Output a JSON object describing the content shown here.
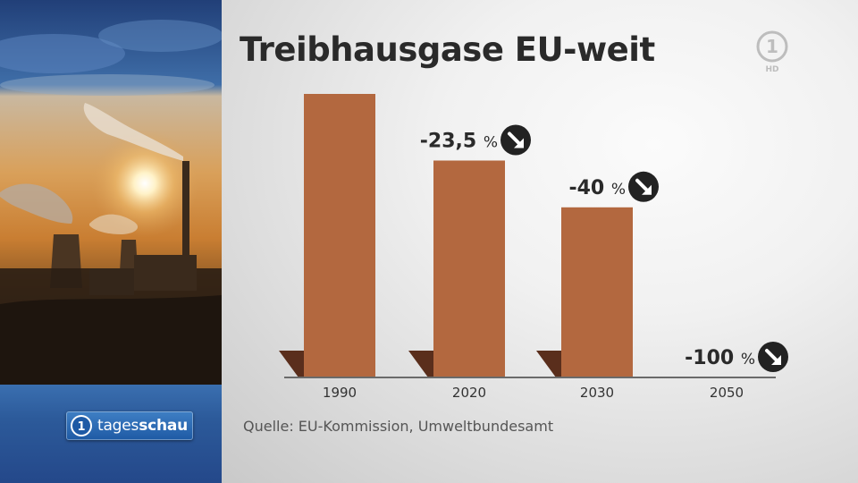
{
  "broadcaster": {
    "program_logo": "tagesschau",
    "channel_logo": "1",
    "channel_logo_suffix": "HD"
  },
  "colors": {
    "bar": "#b3683f",
    "bar_shadow": "#5a2e1c",
    "text": "#2a2a2a",
    "axis": "#6a6a6a",
    "arrow_icon": "#222222"
  },
  "chart_data": {
    "type": "bar",
    "title": "Treibhausgase EU-weit",
    "categories": [
      "1990",
      "2020",
      "2030",
      "2050"
    ],
    "values": [
      100,
      76.5,
      60,
      0
    ],
    "labels": [
      "",
      "-23,5 %",
      "-40 %",
      "-100 %"
    ],
    "label_icon": "arrow-down-right-icon",
    "ylim": [
      0,
      100
    ],
    "grid": false,
    "legend": "none",
    "source": "Quelle: EU-Kommission, Umweltbundesamt"
  }
}
